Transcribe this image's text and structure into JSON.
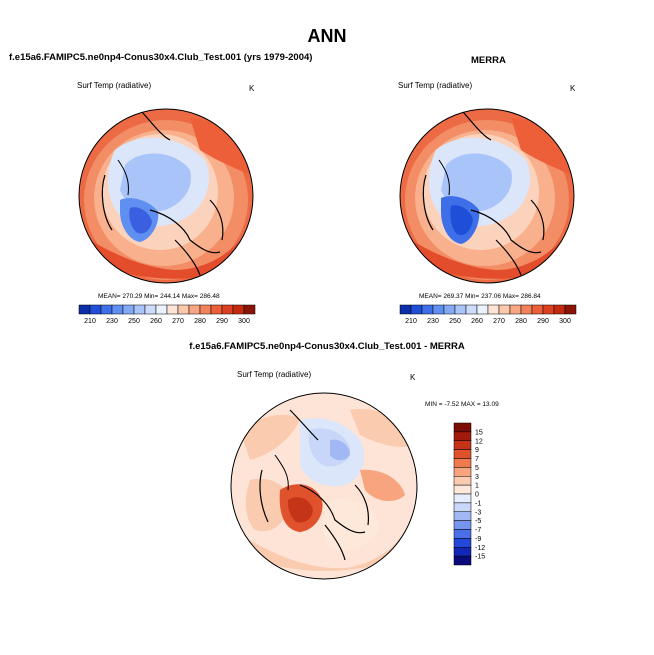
{
  "page": {
    "title": "ANN"
  },
  "panels": {
    "model": {
      "heading": "f.e15a6.FAMIPC5.ne0np4-Conus30x4.Club_Test.001 (yrs 1979-2004)",
      "variable": "Surf Temp (radiative)",
      "units": "K",
      "stats": "MEAN= 270.29  Min= 244.14  Max= 286.48"
    },
    "obs": {
      "heading": "MERRA",
      "variable": "Surf Temp (radiative)",
      "units": "K",
      "stats": "MEAN= 269.37  Min= 237.06  Max= 286.84"
    },
    "diff": {
      "heading": "f.e15a6.FAMIPC5.ne0np4-Conus30x4.Club_Test.001 - MERRA",
      "variable": "Surf Temp (radiative)",
      "units": "K",
      "stats": "MIN = -7.52 MAX = 13.09"
    }
  },
  "chart_data": [
    {
      "type": "heatmap",
      "title": "Surf Temp (radiative)",
      "subtitle": "f.e15a6.FAMIPC5.ne0np4-Conus30x4.Club_Test.001 (yrs 1979-2004)",
      "units": "K",
      "projection": "north-polar-stereographic",
      "mean": 270.29,
      "min": 244.14,
      "max": 286.48,
      "colorbar_levels": [
        210,
        220,
        230,
        240,
        250,
        255,
        260,
        265,
        270,
        275,
        280,
        285,
        290,
        295,
        300
      ],
      "colorbar_tick_labels": [
        "210",
        "230",
        "250",
        "260",
        "270",
        "280",
        "290",
        "300"
      ],
      "colorbar_colors": [
        "#0b2fa8",
        "#1f4fd8",
        "#3f6fe8",
        "#5f8ff0",
        "#85aaf5",
        "#a9c4f8",
        "#cddcfb",
        "#ebf2fd",
        "#fde4d6",
        "#fbc7ad",
        "#f8a583",
        "#f3825b",
        "#ec5f39",
        "#dd4021",
        "#c42a10",
        "#8c1406"
      ]
    },
    {
      "type": "heatmap",
      "title": "Surf Temp (radiative)",
      "subtitle": "MERRA",
      "units": "K",
      "projection": "north-polar-stereographic",
      "mean": 269.37,
      "min": 237.06,
      "max": 286.84,
      "colorbar_levels": [
        210,
        220,
        230,
        240,
        250,
        255,
        260,
        265,
        270,
        275,
        280,
        285,
        290,
        295,
        300
      ],
      "colorbar_tick_labels": [
        "210",
        "230",
        "250",
        "260",
        "270",
        "280",
        "290",
        "300"
      ],
      "colorbar_colors": [
        "#0b2fa8",
        "#1f4fd8",
        "#3f6fe8",
        "#5f8ff0",
        "#85aaf5",
        "#a9c4f8",
        "#cddcfb",
        "#ebf2fd",
        "#fde4d6",
        "#fbc7ad",
        "#f8a583",
        "#f3825b",
        "#ec5f39",
        "#dd4021",
        "#c42a10",
        "#8c1406"
      ]
    },
    {
      "type": "heatmap",
      "title": "Surf Temp (radiative)",
      "subtitle": "f.e15a6.FAMIPC5.ne0np4-Conus30x4.Club_Test.001 - MERRA",
      "units": "K",
      "projection": "north-polar-stereographic",
      "min": -7.52,
      "max": 13.09,
      "colorbar_levels": [
        -15,
        -12,
        -9,
        -7,
        -5,
        -3,
        -1,
        0,
        1,
        3,
        5,
        7,
        9,
        12,
        15
      ],
      "colorbar_tick_labels": [
        "15",
        "12",
        "9",
        "7",
        "5",
        "3",
        "1",
        "0",
        "-1",
        "-3",
        "-5",
        "-7",
        "-9",
        "-12",
        "-15"
      ],
      "colorbar_colors": [
        "#0a0a7a",
        "#1028b4",
        "#2449d8",
        "#4a6fe6",
        "#7595ef",
        "#a2b8f5",
        "#c8d6fa",
        "#e6eefd",
        "#fde8da",
        "#fbcbb0",
        "#f7a47f",
        "#f07a50",
        "#e0522c",
        "#c63418",
        "#a11a0c",
        "#7a0c06"
      ]
    }
  ]
}
